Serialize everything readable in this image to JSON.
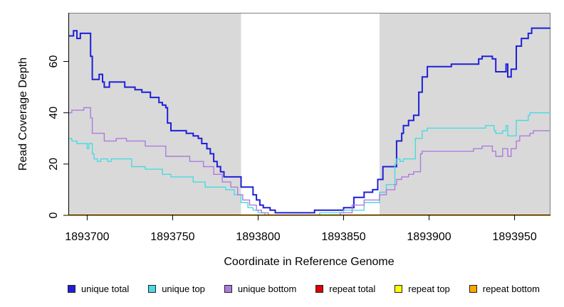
{
  "chart_data": {
    "type": "line",
    "subtype": "step-after",
    "title": "",
    "xlabel": "Coordinate in Reference Genome",
    "ylabel": "Read Coverage Depth",
    "xlim": [
      1893689,
      1893971
    ],
    "ylim": [
      0,
      79
    ],
    "xticks": [
      1893700,
      1893750,
      1893800,
      1893850,
      1893900,
      1893950
    ],
    "yticks": [
      0,
      20,
      40,
      60
    ],
    "grid": false,
    "legend_position": "bottom",
    "panel_background": "#ffffff",
    "shaded_color": "#d9d9d9",
    "border_color": "#808080",
    "axis_color": "#000000",
    "shaded_regions": [
      [
        1893689,
        1893790
      ],
      [
        1893871,
        1893971
      ]
    ],
    "unshaded_region": [
      1893790,
      1893871
    ],
    "series": [
      {
        "name": "unique total",
        "color": "#1f1fd9",
        "lwd": 2,
        "points": [
          [
            1893689,
            70
          ],
          [
            1893692,
            72
          ],
          [
            1893694,
            69
          ],
          [
            1893696,
            71
          ],
          [
            1893702,
            62
          ],
          [
            1893703,
            53
          ],
          [
            1893707,
            55
          ],
          [
            1893709,
            52
          ],
          [
            1893710,
            50
          ],
          [
            1893713,
            52
          ],
          [
            1893722,
            50
          ],
          [
            1893728,
            49
          ],
          [
            1893732,
            48
          ],
          [
            1893737,
            46
          ],
          [
            1893742,
            44
          ],
          [
            1893744,
            43
          ],
          [
            1893746,
            42
          ],
          [
            1893747,
            36
          ],
          [
            1893749,
            33
          ],
          [
            1893758,
            32
          ],
          [
            1893762,
            31
          ],
          [
            1893765,
            30
          ],
          [
            1893767,
            28
          ],
          [
            1893770,
            26
          ],
          [
            1893772,
            24
          ],
          [
            1893774,
            21
          ],
          [
            1893776,
            19
          ],
          [
            1893778,
            17
          ],
          [
            1893780,
            15
          ],
          [
            1893790,
            11
          ],
          [
            1893797,
            8
          ],
          [
            1893799,
            6
          ],
          [
            1893801,
            4
          ],
          [
            1893803,
            3
          ],
          [
            1893807,
            2
          ],
          [
            1893810,
            1
          ],
          [
            1893833,
            2
          ],
          [
            1893850,
            3
          ],
          [
            1893856,
            7
          ],
          [
            1893862,
            9
          ],
          [
            1893867,
            10
          ],
          [
            1893870,
            14
          ],
          [
            1893873,
            19
          ],
          [
            1893881,
            29
          ],
          [
            1893884,
            32
          ],
          [
            1893885,
            35
          ],
          [
            1893888,
            37
          ],
          [
            1893891,
            39
          ],
          [
            1893894,
            48
          ],
          [
            1893896,
            54
          ],
          [
            1893899,
            58
          ],
          [
            1893913,
            59
          ],
          [
            1893929,
            61
          ],
          [
            1893931,
            62
          ],
          [
            1893937,
            61
          ],
          [
            1893939,
            56
          ],
          [
            1893945,
            59
          ],
          [
            1893946,
            54
          ],
          [
            1893948,
            57
          ],
          [
            1893951,
            66
          ],
          [
            1893954,
            69
          ],
          [
            1893958,
            71
          ],
          [
            1893960,
            73
          ],
          [
            1893971,
            73
          ]
        ]
      },
      {
        "name": "unique top",
        "color": "#4adae0",
        "lwd": 1.4,
        "points": [
          [
            1893689,
            30
          ],
          [
            1893691,
            29
          ],
          [
            1893694,
            28
          ],
          [
            1893700,
            26
          ],
          [
            1893701,
            28
          ],
          [
            1893703,
            24
          ],
          [
            1893704,
            22
          ],
          [
            1893706,
            21
          ],
          [
            1893708,
            22
          ],
          [
            1893712,
            21
          ],
          [
            1893714,
            22
          ],
          [
            1893726,
            19
          ],
          [
            1893734,
            18
          ],
          [
            1893744,
            16
          ],
          [
            1893749,
            15
          ],
          [
            1893762,
            13
          ],
          [
            1893769,
            11
          ],
          [
            1893781,
            10
          ],
          [
            1893786,
            8
          ],
          [
            1893790,
            5
          ],
          [
            1893794,
            3
          ],
          [
            1893797,
            2
          ],
          [
            1893800,
            1
          ],
          [
            1893804,
            0
          ],
          [
            1893836,
            1
          ],
          [
            1893850,
            2
          ],
          [
            1893862,
            5
          ],
          [
            1893871,
            9
          ],
          [
            1893875,
            12
          ],
          [
            1893880,
            20
          ],
          [
            1893881,
            22
          ],
          [
            1893883,
            21
          ],
          [
            1893885,
            22
          ],
          [
            1893892,
            30
          ],
          [
            1893896,
            33
          ],
          [
            1893899,
            34
          ],
          [
            1893933,
            35
          ],
          [
            1893938,
            33
          ],
          [
            1893939,
            32
          ],
          [
            1893943,
            33
          ],
          [
            1893945,
            35
          ],
          [
            1893946,
            31
          ],
          [
            1893951,
            37
          ],
          [
            1893958,
            39
          ],
          [
            1893959,
            40
          ],
          [
            1893971,
            40
          ]
        ]
      },
      {
        "name": "unique bottom",
        "color": "#ae7bde",
        "lwd": 1.4,
        "points": [
          [
            1893689,
            40
          ],
          [
            1893691,
            41
          ],
          [
            1893698,
            42
          ],
          [
            1893702,
            38
          ],
          [
            1893703,
            32
          ],
          [
            1893710,
            29
          ],
          [
            1893717,
            30
          ],
          [
            1893723,
            29
          ],
          [
            1893734,
            27
          ],
          [
            1893746,
            23
          ],
          [
            1893760,
            21
          ],
          [
            1893768,
            19
          ],
          [
            1893774,
            16
          ],
          [
            1893779,
            13
          ],
          [
            1893784,
            11
          ],
          [
            1893788,
            8
          ],
          [
            1893791,
            6
          ],
          [
            1893795,
            4
          ],
          [
            1893799,
            2
          ],
          [
            1893802,
            1
          ],
          [
            1893806,
            0
          ],
          [
            1893848,
            1
          ],
          [
            1893855,
            4
          ],
          [
            1893862,
            6
          ],
          [
            1893871,
            8
          ],
          [
            1893875,
            10
          ],
          [
            1893880,
            12
          ],
          [
            1893881,
            14
          ],
          [
            1893884,
            15
          ],
          [
            1893888,
            16
          ],
          [
            1893891,
            17
          ],
          [
            1893895,
            24
          ],
          [
            1893896,
            25
          ],
          [
            1893926,
            26
          ],
          [
            1893931,
            27
          ],
          [
            1893937,
            25
          ],
          [
            1893939,
            23
          ],
          [
            1893943,
            26
          ],
          [
            1893946,
            23
          ],
          [
            1893948,
            26
          ],
          [
            1893951,
            29
          ],
          [
            1893953,
            31
          ],
          [
            1893959,
            32
          ],
          [
            1893961,
            33
          ],
          [
            1893971,
            33
          ]
        ]
      },
      {
        "name": "repeat total",
        "color": "#dd0000",
        "lwd": 1.4,
        "points": [
          [
            1893689,
            0
          ],
          [
            1893971,
            0
          ]
        ]
      },
      {
        "name": "repeat top",
        "color": "#ffff00",
        "lwd": 1.4,
        "points": [
          [
            1893689,
            0
          ],
          [
            1893971,
            0
          ]
        ]
      },
      {
        "name": "repeat bottom",
        "color": "#ffa500",
        "lwd": 1.8,
        "points": [
          [
            1893689,
            0
          ],
          [
            1893971,
            0
          ]
        ]
      }
    ]
  },
  "legend": {
    "items": [
      {
        "label": "unique total",
        "color": "#1f1fd9"
      },
      {
        "label": "unique top",
        "color": "#4adae0"
      },
      {
        "label": "unique bottom",
        "color": "#ae7bde"
      },
      {
        "label": "repeat total",
        "color": "#dd0000"
      },
      {
        "label": "repeat top",
        "color": "#ffff00"
      },
      {
        "label": "repeat bottom",
        "color": "#ffa500"
      }
    ]
  }
}
